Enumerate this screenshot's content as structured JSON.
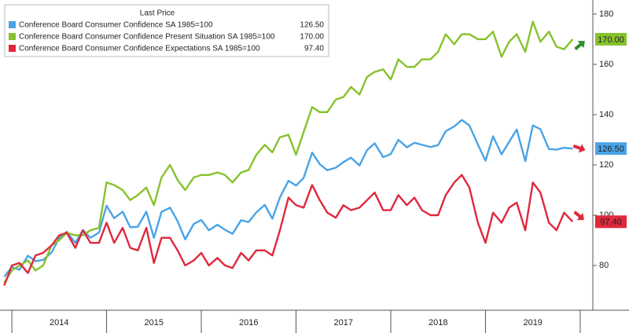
{
  "chart_data": {
    "type": "line",
    "legend_title": "Last Price",
    "legend": "top-left",
    "grid": false,
    "x": [
      2013.92,
      2014,
      2014.08,
      2014.17,
      2014.25,
      2014.33,
      2014.42,
      2014.5,
      2014.58,
      2014.67,
      2014.75,
      2014.83,
      2014.92,
      2015,
      2015.08,
      2015.17,
      2015.25,
      2015.33,
      2015.42,
      2015.5,
      2015.58,
      2015.67,
      2015.75,
      2015.83,
      2015.92,
      2016,
      2016.08,
      2016.17,
      2016.25,
      2016.33,
      2016.42,
      2016.5,
      2016.58,
      2016.67,
      2016.75,
      2016.83,
      2016.92,
      2017,
      2017.08,
      2017.17,
      2017.25,
      2017.33,
      2017.42,
      2017.5,
      2017.58,
      2017.67,
      2017.75,
      2017.83,
      2017.92,
      2018,
      2018.08,
      2018.17,
      2018.25,
      2018.33,
      2018.42,
      2018.5,
      2018.58,
      2018.67,
      2018.75,
      2018.83,
      2018.92,
      2019,
      2019.08,
      2019.17,
      2019.25,
      2019.33,
      2019.42,
      2019.5,
      2019.58,
      2019.67,
      2019.75,
      2019.83,
      2019.92
    ],
    "xlim": [
      2013.875,
      2020.1
    ],
    "xticks": [
      2014,
      2015,
      2016,
      2017,
      2018,
      2019
    ],
    "ylim": [
      62.2,
      185.6
    ],
    "yticks": [
      80,
      100,
      120,
      140,
      160,
      180
    ],
    "series": [
      {
        "name": "Conference Board Consumer Confidence SA 1985=100",
        "color": "#4aa3e6",
        "values": [
          75.5,
          79.4,
          78.3,
          83.9,
          81.7,
          82.2,
          85.2,
          90.9,
          93.4,
          89.0,
          94.1,
          91.0,
          93.1,
          103.8,
          98.8,
          101.4,
          95.2,
          95.4,
          101.4,
          91.0,
          101.3,
          103.0,
          97.6,
          90.4,
          96.5,
          98.1,
          94.0,
          96.2,
          94.2,
          92.6,
          98.0,
          97.3,
          101.1,
          104.1,
          98.6,
          107.1,
          113.7,
          111.8,
          114.8,
          124.9,
          120.3,
          117.9,
          118.9,
          121.1,
          122.9,
          119.8,
          125.9,
          128.6,
          123.1,
          124.3,
          130.0,
          127.0,
          128.8,
          128.0,
          127.1,
          127.9,
          133.4,
          135.3,
          137.9,
          135.7,
          128.1,
          121.7,
          131.4,
          124.2,
          129.2,
          134.1,
          121.5,
          135.7,
          134.2,
          126.3,
          126.1,
          126.8,
          126.5
        ],
        "value_labels": [
          null,
          null,
          null,
          null,
          null,
          null,
          null,
          null,
          null,
          null,
          null,
          null,
          null,
          null,
          null,
          null,
          null,
          null,
          null,
          null,
          null,
          null,
          null,
          null,
          null,
          null,
          null,
          null,
          null,
          null,
          null,
          null,
          null,
          null,
          null,
          null,
          null,
          null,
          null,
          null,
          null,
          null,
          null,
          null,
          null,
          null,
          null,
          null,
          null,
          null,
          null,
          null,
          null,
          null,
          null,
          null,
          null,
          null,
          null,
          null,
          null,
          null,
          null,
          null,
          null,
          null,
          null,
          null,
          null,
          null,
          null,
          null,
          "126.50"
        ]
      },
      {
        "name": "Conference Board Consumer Confidence Present Situation SA 1985=100",
        "color": "#86c22c",
        "values": [
          73,
          78,
          80,
          82,
          78,
          80,
          88,
          90,
          93,
          92,
          92,
          94,
          95,
          113,
          112,
          110,
          106,
          108,
          111,
          104,
          115,
          120,
          114,
          110,
          115,
          116,
          116,
          117,
          116,
          113,
          117,
          118,
          124,
          128,
          125,
          131,
          132,
          124,
          133,
          143,
          141,
          141,
          146,
          147,
          151,
          148,
          155,
          157,
          158,
          154,
          162,
          159,
          159,
          162,
          162,
          165,
          172,
          168,
          172,
          172,
          170,
          170,
          173,
          163,
          169,
          172,
          165,
          177,
          169,
          173,
          167,
          166,
          170.0
        ],
        "value_labels": [
          null,
          null,
          null,
          null,
          null,
          null,
          null,
          null,
          null,
          null,
          null,
          null,
          null,
          null,
          null,
          null,
          null,
          null,
          null,
          null,
          null,
          null,
          null,
          null,
          null,
          null,
          null,
          null,
          null,
          null,
          null,
          null,
          null,
          null,
          null,
          null,
          null,
          null,
          null,
          null,
          null,
          null,
          null,
          null,
          null,
          null,
          null,
          null,
          null,
          null,
          null,
          null,
          null,
          null,
          null,
          null,
          null,
          null,
          null,
          null,
          null,
          null,
          null,
          null,
          null,
          null,
          null,
          null,
          null,
          null,
          null,
          null,
          "170.00"
        ]
      },
      {
        "name": "Conference Board Consumer Confidence Expectations SA 1985=100",
        "color": "#e0283c",
        "values": [
          72,
          80,
          81,
          77,
          84,
          85,
          88,
          92,
          93,
          87,
          94,
          89,
          89,
          97,
          89,
          95,
          87,
          86,
          95,
          81,
          91,
          91,
          86,
          80,
          82,
          85,
          80,
          83,
          80,
          79,
          85,
          82,
          86,
          86,
          84,
          94,
          107,
          104,
          103,
          112,
          106,
          101,
          99,
          104,
          102,
          103,
          106,
          109,
          102,
          102,
          108,
          104,
          107,
          102,
          100,
          100,
          108,
          113,
          116,
          111,
          97,
          89,
          101,
          97,
          103,
          105,
          94,
          113,
          109,
          97,
          94,
          101,
          97.4
        ],
        "value_labels": [
          null,
          null,
          null,
          null,
          null,
          null,
          null,
          null,
          null,
          null,
          null,
          null,
          null,
          null,
          null,
          null,
          null,
          null,
          null,
          null,
          null,
          null,
          null,
          null,
          null,
          null,
          null,
          null,
          null,
          null,
          null,
          null,
          null,
          null,
          null,
          null,
          null,
          null,
          null,
          null,
          null,
          null,
          null,
          null,
          null,
          null,
          null,
          null,
          null,
          null,
          null,
          null,
          null,
          null,
          null,
          null,
          null,
          null,
          null,
          null,
          null,
          null,
          null,
          null,
          null,
          null,
          null,
          null,
          null,
          null,
          null,
          null,
          "97.40"
        ]
      }
    ]
  }
}
